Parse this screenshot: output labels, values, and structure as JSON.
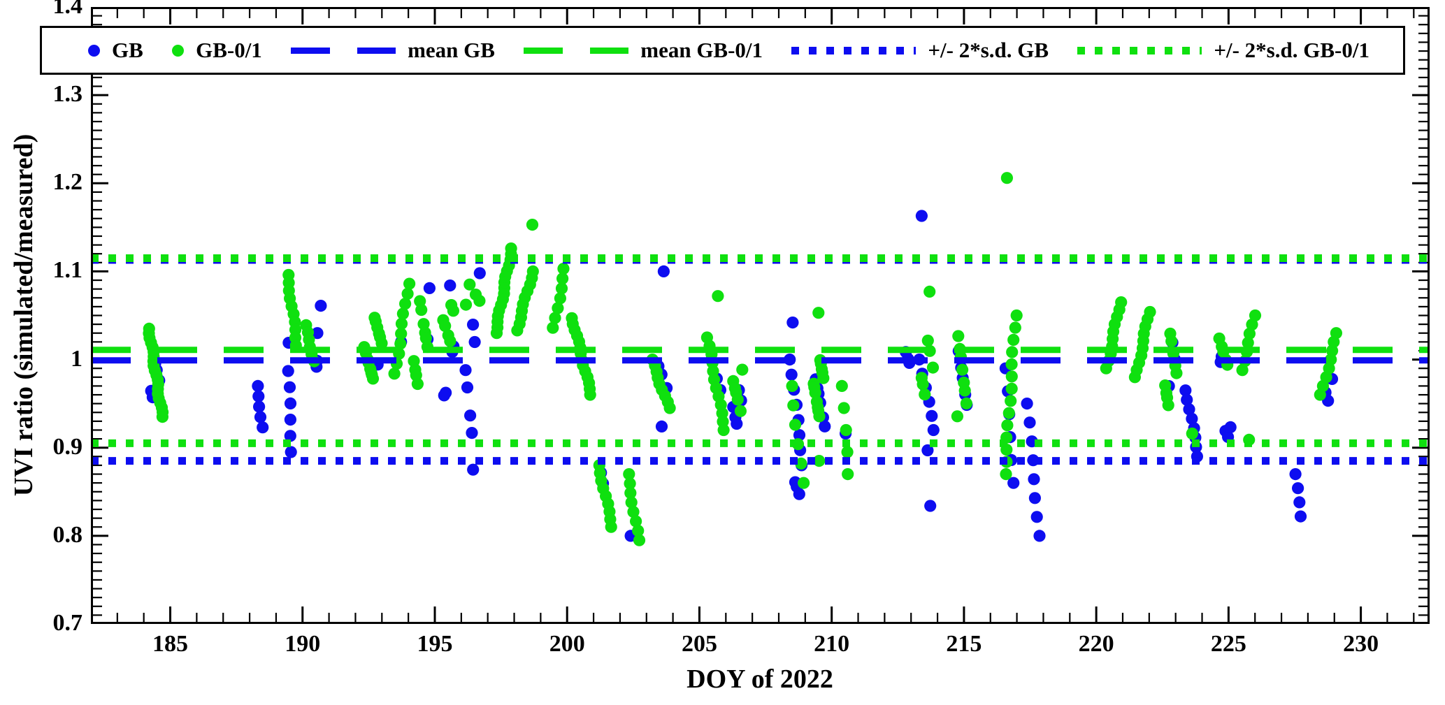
{
  "colors": {
    "blue": "#0d0df0",
    "green": "#0fe00f",
    "axis": "#000000",
    "background": "#ffffff"
  },
  "legend": {
    "items": [
      {
        "label": "GB",
        "marker": "dot",
        "color": "blue"
      },
      {
        "label": "GB-0/1",
        "marker": "dot",
        "color": "green"
      },
      {
        "label": "mean GB",
        "marker": "dash",
        "color": "blue"
      },
      {
        "label": "mean GB-0/1",
        "marker": "dash",
        "color": "green"
      },
      {
        "label": "+/- 2*s.d. GB",
        "marker": "dotline",
        "color": "blue"
      },
      {
        "label": "+/- 2*s.d. GB-0/1",
        "marker": "dotline",
        "color": "green"
      }
    ]
  },
  "chart_data": {
    "type": "scatter",
    "title": "",
    "xlabel": "DOY of 2022",
    "ylabel": "UVI ratio (simulated/measured)",
    "xlim": [
      182,
      232.6
    ],
    "ylim": [
      0.7,
      1.4
    ],
    "x_ticks": [
      185,
      190,
      195,
      200,
      205,
      210,
      215,
      220,
      225,
      230
    ],
    "x_minor_step": 1,
    "y_tick_values": [
      1.4,
      1.3,
      1.2,
      1.1,
      1.0,
      0.9,
      0.8,
      0.7
    ],
    "y_ticks": [
      "1.4",
      "1.3",
      "1.2",
      "1.1",
      "1",
      "0.9",
      "0.8",
      "0.7"
    ],
    "y_minor_step": 0.01,
    "grid": false,
    "legend_position": "top",
    "ref_lines": [
      {
        "label": "+2sd GB",
        "color": "blue",
        "style": "dotted",
        "value": 1.113
      },
      {
        "label": "-2sd GB",
        "color": "blue",
        "style": "dotted",
        "value": 0.885
      },
      {
        "label": "+2sd GB-0/1",
        "color": "green",
        "style": "dotted",
        "value": 1.115
      },
      {
        "label": "-2sd GB-0/1",
        "color": "green",
        "style": "dotted",
        "value": 0.905
      },
      {
        "label": "mean GB",
        "color": "blue",
        "style": "dashed",
        "value": 0.999
      },
      {
        "label": "mean GB-0/1",
        "color": "green",
        "style": "dashed",
        "value": 1.011
      }
    ],
    "cluster_format": "[doy_start, doy_end, ratio_min, ratio_max, n_points, trend(optional: up|down|mix)]",
    "series": [
      {
        "name": "GB",
        "color": "blue",
        "clusters": [
          [
            184.25,
            184.65,
            0.955,
            1.005,
            5
          ],
          [
            188.28,
            188.5,
            0.923,
            0.97,
            5,
            "down"
          ],
          [
            189.45,
            189.5,
            1.019,
            1.019,
            1
          ],
          [
            189.45,
            189.6,
            0.895,
            0.987,
            6,
            "down"
          ],
          [
            190.5,
            190.55,
            0.988,
            0.999,
            2
          ],
          [
            190.6,
            190.72,
            1.03,
            1.061,
            2,
            "up"
          ],
          [
            192.5,
            192.9,
            0.985,
            0.995,
            2
          ],
          [
            193.7,
            193.75,
            1.02,
            1.02,
            1
          ],
          [
            194.7,
            194.75,
            1.023,
            1.023,
            1
          ],
          [
            194.78,
            194.82,
            1.081,
            1.081,
            1
          ],
          [
            195.55,
            195.6,
            1.084,
            1.084,
            1
          ],
          [
            195.6,
            195.72,
            1.005,
            1.015,
            2
          ],
          [
            195.35,
            195.45,
            0.957,
            0.965,
            2
          ],
          [
            196.1,
            196.55,
            0.91,
            1.045,
            6
          ],
          [
            196.68,
            196.72,
            1.098,
            1.098,
            1
          ],
          [
            196.42,
            196.47,
            0.875,
            0.875,
            1
          ],
          [
            201.25,
            201.45,
            0.845,
            0.877,
            2
          ],
          [
            202.38,
            202.42,
            0.8,
            0.8,
            1
          ],
          [
            203.63,
            203.67,
            1.1,
            1.1,
            1
          ],
          [
            203.3,
            203.8,
            0.955,
            0.995,
            3
          ],
          [
            203.55,
            203.6,
            0.924,
            0.924,
            1
          ],
          [
            205.35,
            205.9,
            0.95,
            1.005,
            3
          ],
          [
            206.25,
            206.6,
            0.925,
            0.975,
            5
          ],
          [
            208.5,
            208.55,
            1.042,
            1.042,
            1
          ],
          [
            208.45,
            208.9,
            0.88,
            1.0,
            8,
            "down"
          ],
          [
            208.6,
            208.85,
            0.846,
            0.868,
            3
          ],
          [
            209.3,
            209.75,
            0.91,
            0.98,
            6
          ],
          [
            210.5,
            210.55,
            0.916,
            0.916,
            1
          ],
          [
            212.78,
            213.0,
            0.99,
            1.01,
            3
          ],
          [
            213.38,
            213.42,
            1.163,
            1.163,
            1
          ],
          [
            213.35,
            213.85,
            0.92,
            1.0,
            6,
            "down"
          ],
          [
            213.6,
            213.65,
            0.897,
            0.897,
            1
          ],
          [
            213.7,
            213.75,
            0.834,
            0.834,
            1
          ],
          [
            214.75,
            215.15,
            0.93,
            1.01,
            5
          ],
          [
            216.55,
            216.9,
            0.86,
            0.99,
            6,
            "down"
          ],
          [
            217.4,
            217.85,
            0.8,
            0.95,
            8,
            "down"
          ],
          [
            222.7,
            223.05,
            0.95,
            1.03,
            3
          ],
          [
            223.4,
            223.85,
            0.89,
            0.965,
            8,
            "down"
          ],
          [
            224.7,
            224.8,
            0.995,
            1.005,
            2
          ],
          [
            224.85,
            225.1,
            0.91,
            0.928,
            3
          ],
          [
            227.5,
            227.75,
            0.822,
            0.87,
            4,
            "down"
          ],
          [
            228.6,
            229.0,
            0.95,
            0.99,
            3
          ]
        ]
      },
      {
        "name": "GB-0/1",
        "color": "green",
        "clusters": [
          [
            184.2,
            184.7,
            0.935,
            1.035,
            20,
            "down"
          ],
          [
            189.44,
            189.79,
            1.016,
            1.096,
            10,
            "down"
          ],
          [
            190.1,
            190.45,
            0.998,
            1.039,
            6,
            "down"
          ],
          [
            192.3,
            193.0,
            0.978,
            1.054,
            14
          ],
          [
            193.5,
            194.0,
            0.984,
            1.086,
            10,
            "up"
          ],
          [
            194.2,
            194.8,
            0.96,
            1.07,
            10
          ],
          [
            195.2,
            195.7,
            1.02,
            1.065,
            6
          ],
          [
            196.1,
            196.7,
            1.06,
            1.09,
            4
          ],
          [
            197.3,
            197.9,
            1.03,
            1.126,
            16,
            "up"
          ],
          [
            198.1,
            198.7,
            1.033,
            1.1,
            10,
            "up"
          ],
          [
            198.65,
            198.72,
            1.153,
            1.153,
            1
          ],
          [
            199.5,
            199.9,
            1.036,
            1.103,
            7,
            "up"
          ],
          [
            200.2,
            200.9,
            0.96,
            1.047,
            14,
            "down"
          ],
          [
            201.2,
            201.7,
            0.81,
            0.88,
            9,
            "down"
          ],
          [
            202.3,
            202.7,
            0.795,
            0.87,
            8,
            "down"
          ],
          [
            203.2,
            203.85,
            0.945,
            1.0,
            9,
            "down"
          ],
          [
            205.3,
            205.95,
            0.92,
            1.025,
            12,
            "down"
          ],
          [
            205.68,
            205.72,
            1.072,
            1.072,
            1
          ],
          [
            206.2,
            206.65,
            0.94,
            0.995,
            6
          ],
          [
            208.5,
            208.9,
            0.86,
            0.97,
            6,
            "down"
          ],
          [
            209.3,
            209.7,
            0.93,
            1.0,
            12
          ],
          [
            209.48,
            209.52,
            1.053,
            1.053,
            1
          ],
          [
            209.5,
            209.55,
            0.885,
            0.885,
            1
          ],
          [
            210.42,
            210.6,
            0.87,
            0.97,
            5,
            "down"
          ],
          [
            213.35,
            213.85,
            0.96,
            1.04,
            6
          ],
          [
            213.68,
            213.72,
            1.077,
            1.077,
            1
          ],
          [
            214.7,
            215.1,
            0.93,
            1.03,
            8
          ],
          [
            216.55,
            216.95,
            0.87,
            1.05,
            14,
            "up"
          ],
          [
            216.6,
            216.65,
            1.206,
            1.206,
            1
          ],
          [
            220.4,
            220.9,
            0.99,
            1.065,
            10,
            "up"
          ],
          [
            221.5,
            222.0,
            0.98,
            1.054,
            10,
            "up"
          ],
          [
            222.6,
            223.1,
            0.945,
            1.04,
            9
          ],
          [
            223.6,
            223.65,
            0.916,
            0.916,
            1
          ],
          [
            224.6,
            225.0,
            0.985,
            1.024,
            5
          ],
          [
            225.5,
            226.0,
            0.988,
            1.05,
            7,
            "up"
          ],
          [
            225.75,
            225.8,
            0.909,
            0.909,
            1
          ],
          [
            228.5,
            229.1,
            0.96,
            1.03,
            8,
            "up"
          ]
        ]
      }
    ]
  }
}
